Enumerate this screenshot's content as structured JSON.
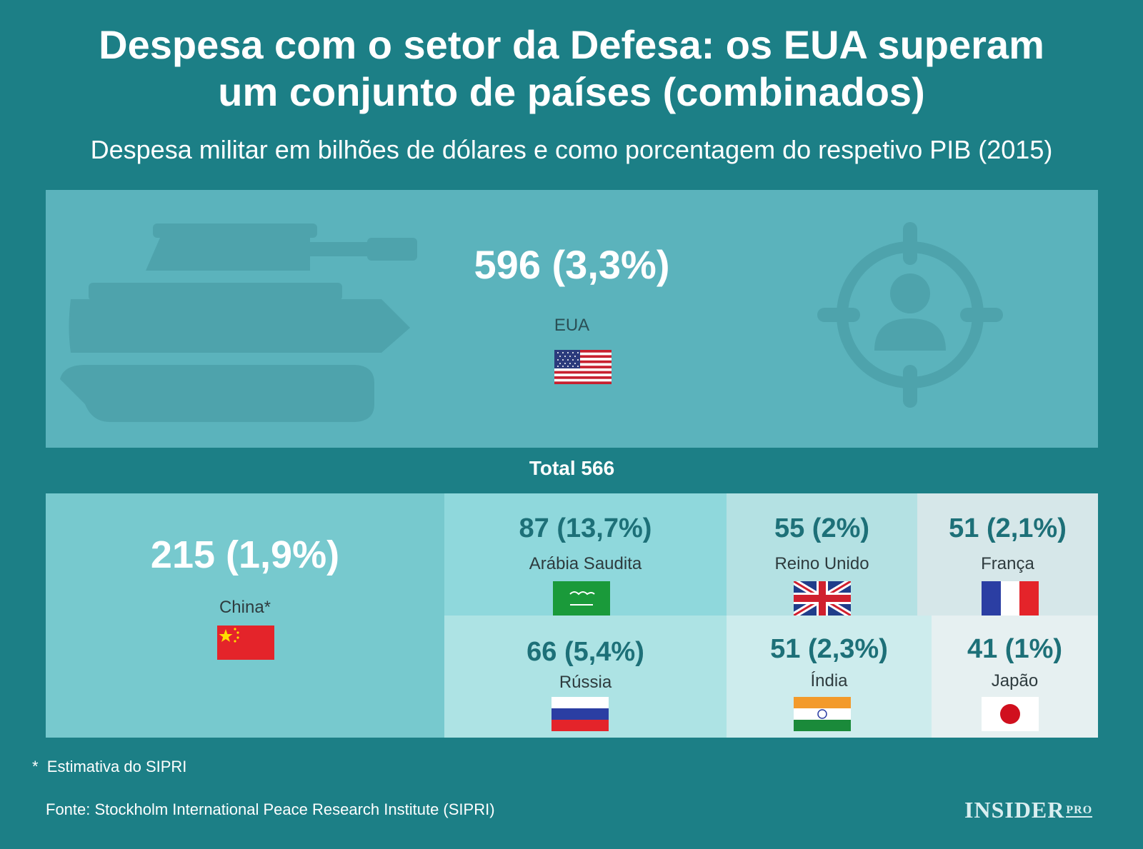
{
  "title_line1": "Despesa com o setor da Defesa: os EUA superam",
  "title_line2": "um conjunto de países (combinados)",
  "subtitle": "Despesa militar em bilhões de dólares e como porcentagem do respetivo PIB (2015)",
  "total_label": "Total 566",
  "footnote": "*  Estimativa do SIPRI",
  "source": "Fonte: Stockholm International Peace Research Institute (SIPRI)",
  "brand": "INSIDER",
  "brand_suffix": "PRO",
  "icons": [
    "tank-icon",
    "target-person-icon"
  ],
  "colors": {
    "background": "#1c7f86",
    "usa": "#5bb3bc",
    "china": "#77c9ce",
    "saudi": "#8fd8dc",
    "russia": "#ade3e4",
    "uk": "#b4e1e3",
    "india": "#cdeced",
    "france": "#d6e7e9",
    "japan": "#e6f0f1"
  },
  "chart_data": {
    "type": "treemap",
    "title": "Despesa com o setor da Defesa: os EUA superam um conjunto de países (combinados)",
    "subtitle": "Despesa militar em bilhões de dólares e como porcentagem do respetivo PIB (2015)",
    "unit": "bilhões de dólares",
    "groups": [
      {
        "name": "",
        "items": [
          {
            "country": "EUA",
            "value": 596,
            "gdp_pct": "3,3%",
            "label": "596  (3,3%)"
          }
        ]
      },
      {
        "name": "Total 566",
        "total": 566,
        "items": [
          {
            "country": "China*",
            "value": 215,
            "gdp_pct": "1,9%",
            "label": "215 (1,9%)"
          },
          {
            "country": "Arábia Saudita",
            "value": 87,
            "gdp_pct": "13,7%",
            "label": "87  (13,7%)"
          },
          {
            "country": "Rússia",
            "value": 66,
            "gdp_pct": "5,4%",
            "label": "66 (5,4%)"
          },
          {
            "country": "Reino Unido",
            "value": 55,
            "gdp_pct": "2%",
            "label": "55  (2%)"
          },
          {
            "country": "Índia",
            "value": 51,
            "gdp_pct": "2,3%",
            "label": "51  (2,3%)"
          },
          {
            "country": "França",
            "value": 51,
            "gdp_pct": "2,1%",
            "label": "51 (2,1%)"
          },
          {
            "country": "Japão",
            "value": 41,
            "gdp_pct": "1%",
            "label": "41 (1%)"
          }
        ]
      }
    ]
  }
}
